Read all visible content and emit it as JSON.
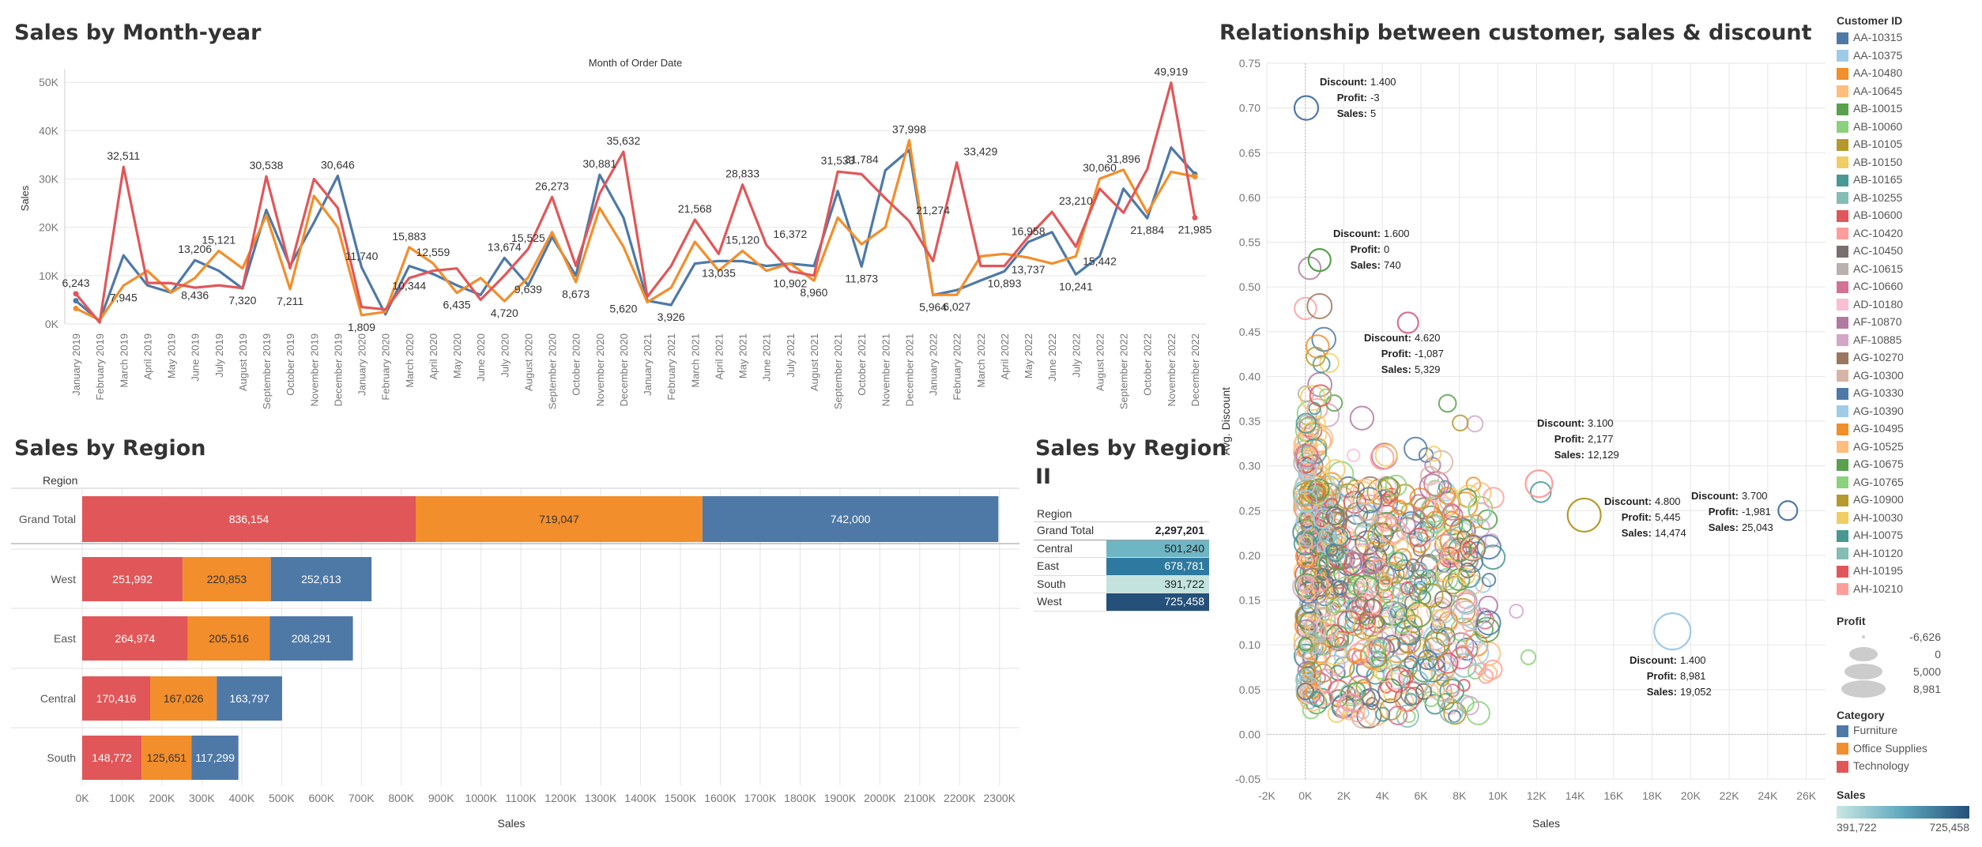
{
  "titles": {
    "line": "Sales by Month-year",
    "line_axis_top": "Month of Order Date",
    "region": "Sales by Region",
    "region2_line1": "Sales by Region",
    "region2_line2": "II",
    "scatter": "Relationship between customer, sales &  discount"
  },
  "colors": {
    "furniture": "#4e79a7",
    "office": "#f28e2b",
    "technology": "#e15759",
    "grid": "#e6e6e6"
  },
  "chart_data": [
    {
      "type": "line",
      "title": "Sales by Month-year",
      "xlabel": "Month of Order Date",
      "ylabel": "Sales",
      "ylim": [
        0,
        52000
      ],
      "yticks": [
        "0K",
        "10K",
        "20K",
        "30K",
        "40K",
        "50K"
      ],
      "categories": [
        "January 2019",
        "February 2019",
        "March 2019",
        "April 2019",
        "May 2019",
        "June 2019",
        "July 2019",
        "August 2019",
        "September 2019",
        "October 2019",
        "November 2019",
        "December 2019",
        "January 2020",
        "February 2020",
        "March 2020",
        "April 2020",
        "May 2020",
        "June 2020",
        "July 2020",
        "August 2020",
        "September 2020",
        "October 2020",
        "November 2020",
        "December 2020",
        "January 2021",
        "February 2021",
        "March 2021",
        "April 2021",
        "May 2021",
        "June 2021",
        "July 2021",
        "August 2021",
        "September 2021",
        "October 2021",
        "November 2021",
        "December 2021",
        "January 2022",
        "February 2022",
        "March 2022",
        "April 2022",
        "May 2022",
        "June 2022",
        "July 2022",
        "August 2022",
        "September 2022",
        "October 2022",
        "November 2022",
        "December 2022"
      ],
      "series": [
        {
          "values": [
            4800,
            600,
            14200,
            8000,
            6500,
            13200,
            11000,
            7320,
            23600,
            12000,
            21000,
            30646,
            11740,
            2000,
            12000,
            10344,
            8000,
            6000,
            13674,
            8000,
            18000,
            10000,
            30881,
            22000,
            4800,
            3926,
            12500,
            13035,
            13000,
            12000,
            12500,
            12000,
            27500,
            11873,
            31784,
            36000,
            5964,
            7000,
            9000,
            10893,
            16958,
            19000,
            10241,
            14000,
            28000,
            21884,
            36500,
            31000
          ]
        },
        {
          "values": [
            3200,
            800,
            7945,
            11000,
            6500,
            9500,
            15121,
            11500,
            22500,
            7211,
            26500,
            20000,
            1809,
            2500,
            15883,
            12559,
            6435,
            9500,
            4720,
            9639,
            19000,
            8673,
            24000,
            16000,
            4500,
            7500,
            17000,
            11000,
            15120,
            11000,
            12500,
            8960,
            22000,
            16500,
            20000,
            37998,
            6000,
            6027,
            14000,
            14500,
            13737,
            12500,
            14000,
            30060,
            31896,
            23000,
            31500,
            30500
          ]
        },
        {
          "values": [
            6243,
            300,
            32511,
            8500,
            8436,
            7500,
            8000,
            7400,
            30538,
            11500,
            30000,
            24000,
            3500,
            3000,
            9500,
            11000,
            11500,
            5000,
            10000,
            15525,
            26273,
            12000,
            27000,
            35632,
            5620,
            12000,
            21568,
            14500,
            28833,
            16372,
            10902,
            10000,
            31533,
            31000,
            26000,
            21274,
            13000,
            33429,
            12000,
            12000,
            18000,
            23210,
            16000,
            28000,
            23000,
            32000,
            49919,
            21985
          ]
        }
      ],
      "labels": [
        "6,243",
        "32,511",
        "7,945",
        "13,206",
        "8,436",
        "15,121",
        "7,320",
        "30,538",
        "7,211",
        "30,646",
        "1,809",
        "11,740",
        "15,883",
        "10,344",
        "12,559",
        "6,435",
        "13,674",
        "4,720",
        "15,525",
        "9,639",
        "26,273",
        "8,673",
        "30,881",
        "35,632",
        "5,620",
        "3,926",
        "21,568",
        "13,035",
        "28,833",
        "15,120",
        "16,372",
        "10,902",
        "8,960",
        "31,533",
        "11,873",
        "31,784",
        "37,998",
        "5,964",
        "21,274",
        "6,027",
        "33,429",
        "10,893",
        "16,958",
        "13,737",
        "23,210",
        "10,241",
        "30,060",
        "15,442",
        "31,896",
        "21,884",
        "49,919",
        "21,985"
      ]
    },
    {
      "type": "bar",
      "title": "Sales by Region",
      "xlabel": "Sales",
      "ylabel": "Region",
      "categories": [
        "Grand Total",
        "West",
        "East",
        "Central",
        "South"
      ],
      "series": [
        {
          "values": [
            836154,
            251992,
            264974,
            170416,
            148772
          ],
          "labels": [
            "836,154",
            "251,992",
            "264,974",
            "170,416",
            "148,772"
          ]
        },
        {
          "values": [
            719047,
            220853,
            205516,
            167026,
            125651
          ],
          "labels": [
            "719,047",
            "220,853",
            "205,516",
            "167,026",
            "125,651"
          ]
        },
        {
          "values": [
            742000,
            252613,
            208291,
            163797,
            117299
          ],
          "labels": [
            "742,000",
            "252,613",
            "208,291",
            "163,797",
            "117,299"
          ]
        }
      ],
      "xlim": [
        0,
        2350000
      ],
      "xticks": [
        "0K",
        "100K",
        "200K",
        "300K",
        "400K",
        "500K",
        "600K",
        "700K",
        "800K",
        "900K",
        "1000K",
        "1100K",
        "1200K",
        "1300K",
        "1400K",
        "1500K",
        "1600K",
        "1700K",
        "1800K",
        "1900K",
        "2000K",
        "2100K",
        "2200K",
        "2300K"
      ]
    },
    {
      "type": "table",
      "title": "Sales by Region II",
      "header": "Region",
      "rows": [
        {
          "region": "Grand Total",
          "value": "2,297,201",
          "color": ""
        },
        {
          "region": "Central",
          "value": "501,240",
          "color": "#6fb6c4"
        },
        {
          "region": "East",
          "value": "678,781",
          "color": "#2e79a0"
        },
        {
          "region": "South",
          "value": "391,722",
          "color": "#c3e3de"
        },
        {
          "region": "West",
          "value": "725,458",
          "color": "#24507a"
        }
      ]
    },
    {
      "type": "scatter",
      "title": "Relationship between customer, sales &  discount",
      "xlabel": "Sales",
      "ylabel": "Avg. Discount",
      "xlim": [
        -2000,
        27000
      ],
      "ylim": [
        -0.05,
        0.75
      ],
      "xticks": [
        "-2K",
        "0K",
        "2K",
        "4K",
        "6K",
        "8K",
        "10K",
        "12K",
        "14K",
        "16K",
        "18K",
        "20K",
        "22K",
        "24K",
        "26K"
      ],
      "yticks": [
        "-0.05",
        "0.00",
        "0.05",
        "0.10",
        "0.15",
        "0.20",
        "0.25",
        "0.30",
        "0.35",
        "0.40",
        "0.45",
        "0.50",
        "0.55",
        "0.60",
        "0.65",
        "0.70",
        "0.75"
      ],
      "highlighted": [
        {
          "x": 50,
          "y": 0.7,
          "discount": "1.400",
          "profit": "-3",
          "sales": "5"
        },
        {
          "x": 740,
          "y": 0.53,
          "discount": "1.600",
          "profit": "0",
          "sales": "740"
        },
        {
          "x": 5329,
          "y": 0.46,
          "discount": "4.620",
          "profit": "-1,087",
          "sales": "5,329"
        },
        {
          "x": 12129,
          "y": 0.28,
          "discount": "3.100",
          "profit": "2,177",
          "sales": "12,129"
        },
        {
          "x": 14474,
          "y": 0.245,
          "discount": "4.800",
          "profit": "5,445",
          "sales": "14,474"
        },
        {
          "x": 25043,
          "y": 0.25,
          "discount": "3.700",
          "profit": "-1,981",
          "sales": "25,043"
        },
        {
          "x": 19052,
          "y": 0.115,
          "discount": "1.400",
          "profit": "8,981",
          "sales": "19,052"
        }
      ]
    }
  ],
  "tooltip_keys": {
    "discount": "Discount:",
    "profit": "Profit:",
    "sales": "Sales:"
  },
  "legend_customer": {
    "title": "Customer ID",
    "items": [
      {
        "label": "AA-10315",
        "color": "#4e79a7"
      },
      {
        "label": "AA-10375",
        "color": "#a0cbe8"
      },
      {
        "label": "AA-10480",
        "color": "#f28e2b"
      },
      {
        "label": "AA-10645",
        "color": "#ffbe7d"
      },
      {
        "label": "AB-10015",
        "color": "#59a14f"
      },
      {
        "label": "AB-10060",
        "color": "#8cd17d"
      },
      {
        "label": "AB-10105",
        "color": "#b6992d"
      },
      {
        "label": "AB-10150",
        "color": "#f1ce63"
      },
      {
        "label": "AB-10165",
        "color": "#499894"
      },
      {
        "label": "AB-10255",
        "color": "#86bcb6"
      },
      {
        "label": "AB-10600",
        "color": "#e15759"
      },
      {
        "label": "AC-10420",
        "color": "#ff9d9a"
      },
      {
        "label": "AC-10450",
        "color": "#79706e"
      },
      {
        "label": "AC-10615",
        "color": "#bab0ac"
      },
      {
        "label": "AC-10660",
        "color": "#d37295"
      },
      {
        "label": "AD-10180",
        "color": "#fabfd2"
      },
      {
        "label": "AF-10870",
        "color": "#b07aa1"
      },
      {
        "label": "AF-10885",
        "color": "#d4a6c8"
      },
      {
        "label": "AG-10270",
        "color": "#9d7660"
      },
      {
        "label": "AG-10300",
        "color": "#d7b5a6"
      },
      {
        "label": "AG-10330",
        "color": "#4e79a7"
      },
      {
        "label": "AG-10390",
        "color": "#a0cbe8"
      },
      {
        "label": "AG-10495",
        "color": "#f28e2b"
      },
      {
        "label": "AG-10525",
        "color": "#ffbe7d"
      },
      {
        "label": "AG-10675",
        "color": "#59a14f"
      },
      {
        "label": "AG-10765",
        "color": "#8cd17d"
      },
      {
        "label": "AG-10900",
        "color": "#b6992d"
      },
      {
        "label": "AH-10030",
        "color": "#f1ce63"
      },
      {
        "label": "AH-10075",
        "color": "#499894"
      },
      {
        "label": "AH-10120",
        "color": "#86bcb6"
      },
      {
        "label": "AH-10195",
        "color": "#e15759"
      },
      {
        "label": "AH-10210",
        "color": "#ff9d9a"
      }
    ]
  },
  "legend_profit": {
    "title": "Profit",
    "items": [
      "-6,626",
      "0",
      "5,000",
      "8,981"
    ]
  },
  "legend_category": {
    "title": "Category",
    "items": [
      {
        "label": "Furniture",
        "color": "#4e79a7"
      },
      {
        "label": "Office Supplies",
        "color": "#f28e2b"
      },
      {
        "label": "Technology",
        "color": "#e15759"
      }
    ]
  },
  "legend_sales": {
    "title": "Sales",
    "min": "391,722",
    "max": "725,458"
  }
}
